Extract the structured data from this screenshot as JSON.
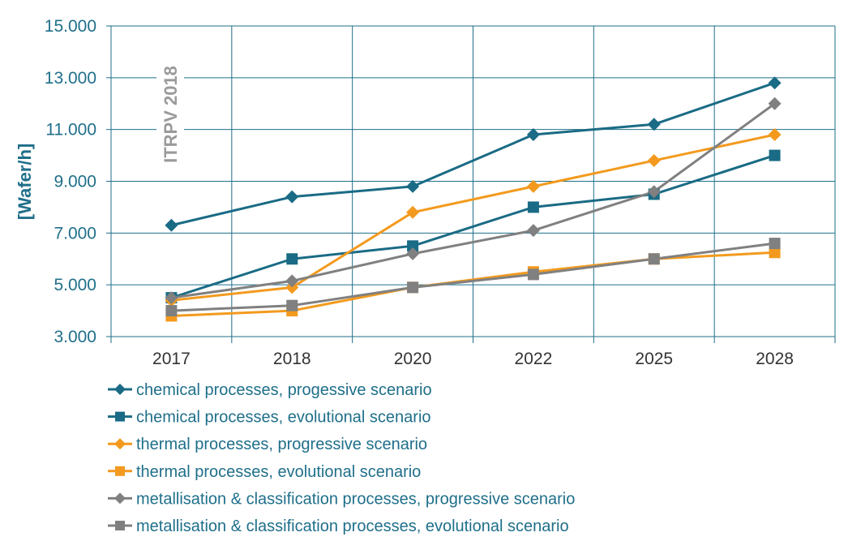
{
  "chart_data": {
    "type": "line",
    "ylabel": "[Wafer/h]",
    "watermark": "ITRPV 2018",
    "categories": [
      "2017",
      "2018",
      "2020",
      "2022",
      "2025",
      "2028"
    ],
    "ylim": [
      3000,
      15000
    ],
    "yticks": [
      3000,
      5000,
      7000,
      9000,
      11000,
      13000,
      15000
    ],
    "ytick_labels": [
      "3.000",
      "5.000",
      "7.000",
      "9.000",
      "11.000",
      "13.000",
      "15.000"
    ],
    "grid": true,
    "series": [
      {
        "name": "chemical processes, progessive scenario",
        "marker": "diamond",
        "color": "#1a6b85",
        "values": [
          7300,
          8400,
          8800,
          10800,
          11200,
          12800
        ]
      },
      {
        "name": "chemical processes, evolutional scenario",
        "marker": "square",
        "color": "#1a6b85",
        "values": [
          4500,
          6000,
          6500,
          8000,
          8500,
          10000
        ]
      },
      {
        "name": "thermal processes, progressive scenario",
        "marker": "diamond",
        "color": "#f39a1e",
        "values": [
          4400,
          4900,
          7800,
          8800,
          9800,
          10800
        ]
      },
      {
        "name": "thermal processes, evolutional scenario",
        "marker": "square",
        "color": "#f39a1e",
        "values": [
          3800,
          4000,
          4900,
          5500,
          6000,
          6250
        ]
      },
      {
        "name": "metallisation & classification processes, progressive scenario",
        "marker": "diamond",
        "color": "#808080",
        "values": [
          4500,
          5150,
          6200,
          7100,
          8600,
          12000
        ]
      },
      {
        "name": "metallisation & classification processes, evolutional scenario",
        "marker": "square",
        "color": "#808080",
        "values": [
          4000,
          4200,
          4900,
          5400,
          6000,
          6600
        ]
      }
    ]
  }
}
